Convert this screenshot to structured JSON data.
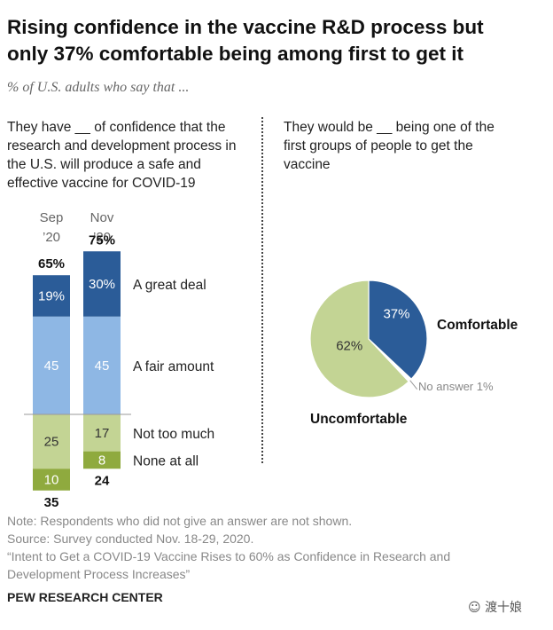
{
  "header": {
    "title_line1": "Rising confidence in the vaccine R&D process but",
    "title_line2": "only 37% comfortable being among first to get it",
    "subtitle": "% of U.S. adults who say that ..."
  },
  "left_question": "They have __ of confidence that the research and development process in the U.S. will produce a safe and effective vaccine for COVID-19",
  "right_question": "They would be __ being one of the first groups of people to get the vaccine",
  "colors": {
    "great_deal": "#2b5c98",
    "fair_amount": "#8eb7e4",
    "not_too_much": "#c3d494",
    "none_at_all": "#8faa3e",
    "pie_comfortable": "#2b5c98",
    "pie_uncomfortable": "#c3d494",
    "pie_no_answer": "#ffffff"
  },
  "chart_data": [
    {
      "type": "bar",
      "stacked": "diverging",
      "categories": [
        "Sep '20",
        "Nov '20"
      ],
      "category_labels": [
        {
          "line1": "Sep",
          "line2": "’20"
        },
        {
          "line1": "Nov",
          "line2": "’20"
        }
      ],
      "series": [
        {
          "name": "A great deal",
          "values": [
            19,
            30
          ],
          "labels": [
            "19%",
            "30%"
          ]
        },
        {
          "name": "A fair amount",
          "values": [
            45,
            45
          ],
          "labels": [
            "45",
            "45"
          ]
        },
        {
          "name": "Not too much",
          "values": [
            25,
            17
          ],
          "labels": [
            "25",
            "17"
          ]
        },
        {
          "name": "None at all",
          "values": [
            10,
            8
          ],
          "labels": [
            "10",
            "8"
          ]
        }
      ],
      "positive_totals": [
        "65%",
        "75%"
      ],
      "negative_totals": [
        "35",
        "24"
      ]
    },
    {
      "type": "pie",
      "slices": [
        {
          "name": "Comfortable",
          "value": 37,
          "label": "37%"
        },
        {
          "name": "Uncomfortable",
          "value": 62,
          "label": "62%"
        },
        {
          "name": "No answer",
          "value": 1,
          "label": "No answer 1%"
        }
      ]
    }
  ],
  "footer": {
    "note": "Note: Respondents who did not give an answer are not shown.",
    "source": "Source: Survey conducted Nov. 18-29, 2020.",
    "report_line1": "“Intent to Get a COVID-19 Vaccine Rises to 60% as Confidence in Research and",
    "report_line2": "Development Process Increases”",
    "brand": "PEW RESEARCH CENTER"
  },
  "watermark": "渡十娘"
}
